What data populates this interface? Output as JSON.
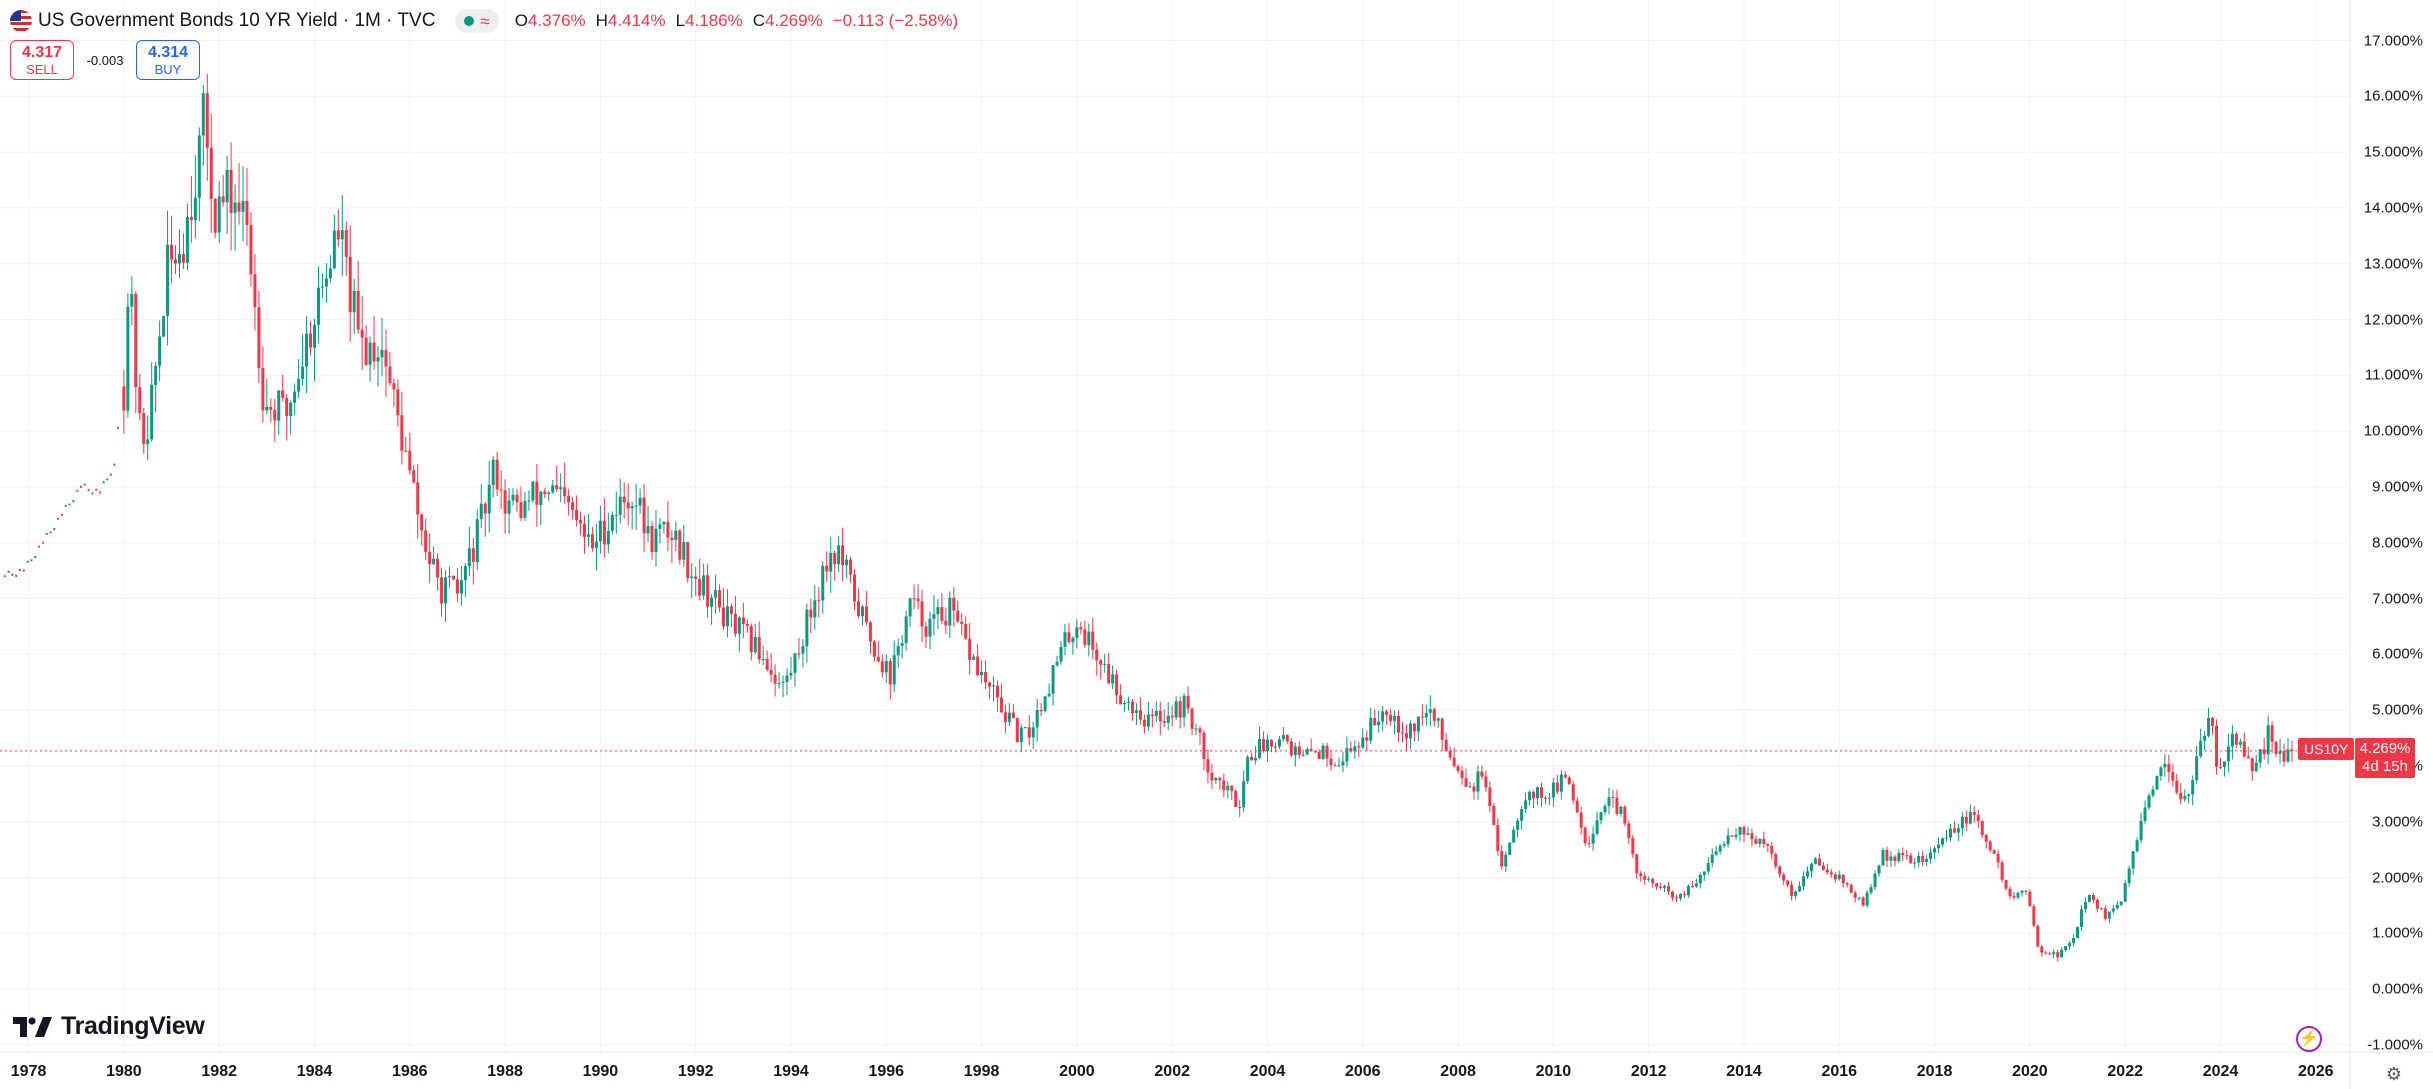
{
  "header": {
    "title": "US Government Bonds 10 YR Yield · 1M · TVC",
    "ohlc": [
      {
        "key": "O",
        "value": "4.376%"
      },
      {
        "key": "H",
        "value": "4.414%"
      },
      {
        "key": "L",
        "value": "4.186%"
      },
      {
        "key": "C",
        "value": "4.269%"
      }
    ],
    "change": "−0.113 (−2.58%)"
  },
  "trade": {
    "sell_price": "4.317",
    "sell_label": "SELL",
    "spread": "-0.003",
    "buy_price": "4.314",
    "buy_label": "BUY"
  },
  "price_badge": {
    "symbol": "US10Y",
    "price": "4.269%",
    "countdown": "4d 15h"
  },
  "logo_text": "TradingView",
  "colors": {
    "up": "#089981",
    "down": "#f23645",
    "grid": "#f0f3fa",
    "accent": "#2962ff"
  },
  "icons": {
    "flag": "us-flag-icon",
    "status": "market-open-icon",
    "flash": "flash-icon",
    "settings": "settings-gear-icon"
  },
  "chart_data": {
    "type": "candlestick",
    "interval": "1M",
    "ylim": [
      -1,
      17
    ],
    "xlim": [
      1977.4,
      2026.5
    ],
    "y_ticks": [
      "17.000%",
      "16.000%",
      "15.000%",
      "14.000%",
      "13.000%",
      "12.000%",
      "11.000%",
      "10.000%",
      "9.000%",
      "8.000%",
      "7.000%",
      "6.000%",
      "5.000%",
      "4.000%",
      "3.000%",
      "2.000%",
      "1.000%",
      "0.000%",
      "-1.000%"
    ],
    "x_ticks": [
      "1978",
      "1980",
      "1982",
      "1984",
      "1986",
      "1988",
      "1990",
      "1992",
      "1994",
      "1996",
      "1998",
      "2000",
      "2002",
      "2004",
      "2006",
      "2008",
      "2010",
      "2012",
      "2014",
      "2016",
      "2018",
      "2020",
      "2022",
      "2024",
      "2026"
    ],
    "last_close": 4.269,
    "pre_1980_points": [
      [
        1977.5,
        7.4
      ],
      [
        1977.9,
        7.5
      ],
      [
        1978.3,
        8.0
      ],
      [
        1978.7,
        8.5
      ],
      [
        1979.1,
        9.0
      ],
      [
        1979.5,
        8.9
      ],
      [
        1979.8,
        9.4
      ],
      [
        1979.95,
        10.6
      ]
    ],
    "anchors": [
      [
        1980.0,
        10.8
      ],
      [
        1980.1,
        12.8
      ],
      [
        1980.35,
        9.8
      ],
      [
        1980.55,
        10.3
      ],
      [
        1980.9,
        12.8
      ],
      [
        1981.25,
        13.5
      ],
      [
        1981.7,
        15.6
      ],
      [
        1981.9,
        14.0
      ],
      [
        1982.3,
        14.2
      ],
      [
        1982.6,
        13.6
      ],
      [
        1982.95,
        10.5
      ],
      [
        1983.4,
        10.3
      ],
      [
        1983.9,
        11.8
      ],
      [
        1984.5,
        13.6
      ],
      [
        1984.95,
        11.5
      ],
      [
        1985.4,
        11.6
      ],
      [
        1985.95,
        9.4
      ],
      [
        1986.3,
        8.0
      ],
      [
        1986.6,
        7.2
      ],
      [
        1987.0,
        7.1
      ],
      [
        1987.45,
        8.2
      ],
      [
        1987.8,
        9.4
      ],
      [
        1988.0,
        8.7
      ],
      [
        1988.3,
        8.6
      ],
      [
        1988.9,
        9.0
      ],
      [
        1989.4,
        8.5
      ],
      [
        1989.8,
        7.9
      ],
      [
        1990.3,
        8.6
      ],
      [
        1990.7,
        8.9
      ],
      [
        1991.0,
        8.1
      ],
      [
        1991.5,
        8.2
      ],
      [
        1992.0,
        7.4
      ],
      [
        1992.7,
        6.6
      ],
      [
        1993.4,
        6.0
      ],
      [
        1993.8,
        5.4
      ],
      [
        1994.0,
        5.7
      ],
      [
        1994.8,
        7.8
      ],
      [
        1995.0,
        7.8
      ],
      [
        1995.7,
        6.2
      ],
      [
        1996.1,
        5.6
      ],
      [
        1996.5,
        6.9
      ],
      [
        1996.9,
        6.5
      ],
      [
        1997.3,
        6.8
      ],
      [
        1998.0,
        5.6
      ],
      [
        1998.8,
        4.5
      ],
      [
        1999.0,
        4.6
      ],
      [
        1999.7,
        6.1
      ],
      [
        2000.0,
        6.6
      ],
      [
        2000.9,
        5.3
      ],
      [
        2001.5,
        4.8
      ],
      [
        2002.3,
        5.1
      ],
      [
        2002.8,
        3.9
      ],
      [
        2003.4,
        3.3
      ],
      [
        2003.6,
        4.2
      ],
      [
        2004.3,
        4.6
      ],
      [
        2004.7,
        4.1
      ],
      [
        2005.0,
        4.3
      ],
      [
        2005.5,
        4.1
      ],
      [
        2006.0,
        4.5
      ],
      [
        2006.5,
        5.1
      ],
      [
        2006.9,
        4.6
      ],
      [
        2007.4,
        5.0
      ],
      [
        2007.9,
        4.1
      ],
      [
        2008.3,
        3.6
      ],
      [
        2008.5,
        3.9
      ],
      [
        2008.9,
        2.2
      ],
      [
        2009.4,
        3.5
      ],
      [
        2009.9,
        3.5
      ],
      [
        2010.3,
        3.8
      ],
      [
        2010.7,
        2.6
      ],
      [
        2011.1,
        3.4
      ],
      [
        2011.4,
        3.2
      ],
      [
        2011.8,
        2.0
      ],
      [
        2012.3,
        1.8
      ],
      [
        2012.6,
        1.6
      ],
      [
        2013.0,
        1.9
      ],
      [
        2013.6,
        2.7
      ],
      [
        2013.9,
        2.9
      ],
      [
        2014.5,
        2.5
      ],
      [
        2015.0,
        1.7
      ],
      [
        2015.5,
        2.3
      ],
      [
        2016.0,
        2.0
      ],
      [
        2016.5,
        1.5
      ],
      [
        2016.9,
        2.4
      ],
      [
        2017.8,
        2.3
      ],
      [
        2018.4,
        2.9
      ],
      [
        2018.8,
        3.1
      ],
      [
        2019.2,
        2.5
      ],
      [
        2019.6,
        1.6
      ],
      [
        2019.9,
        1.8
      ],
      [
        2020.2,
        0.7
      ],
      [
        2020.6,
        0.6
      ],
      [
        2020.9,
        0.9
      ],
      [
        2021.2,
        1.7
      ],
      [
        2021.6,
        1.3
      ],
      [
        2021.9,
        1.5
      ],
      [
        2022.3,
        2.9
      ],
      [
        2022.8,
        4.0
      ],
      [
        2023.0,
        3.6
      ],
      [
        2023.3,
        3.5
      ],
      [
        2023.8,
        4.9
      ],
      [
        2023.95,
        3.9
      ],
      [
        2024.25,
        4.6
      ],
      [
        2024.7,
        3.8
      ],
      [
        2025.0,
        4.6
      ],
      [
        2025.3,
        4.2
      ],
      [
        2025.5,
        4.27
      ]
    ],
    "grid": true,
    "legend": "top-left"
  }
}
